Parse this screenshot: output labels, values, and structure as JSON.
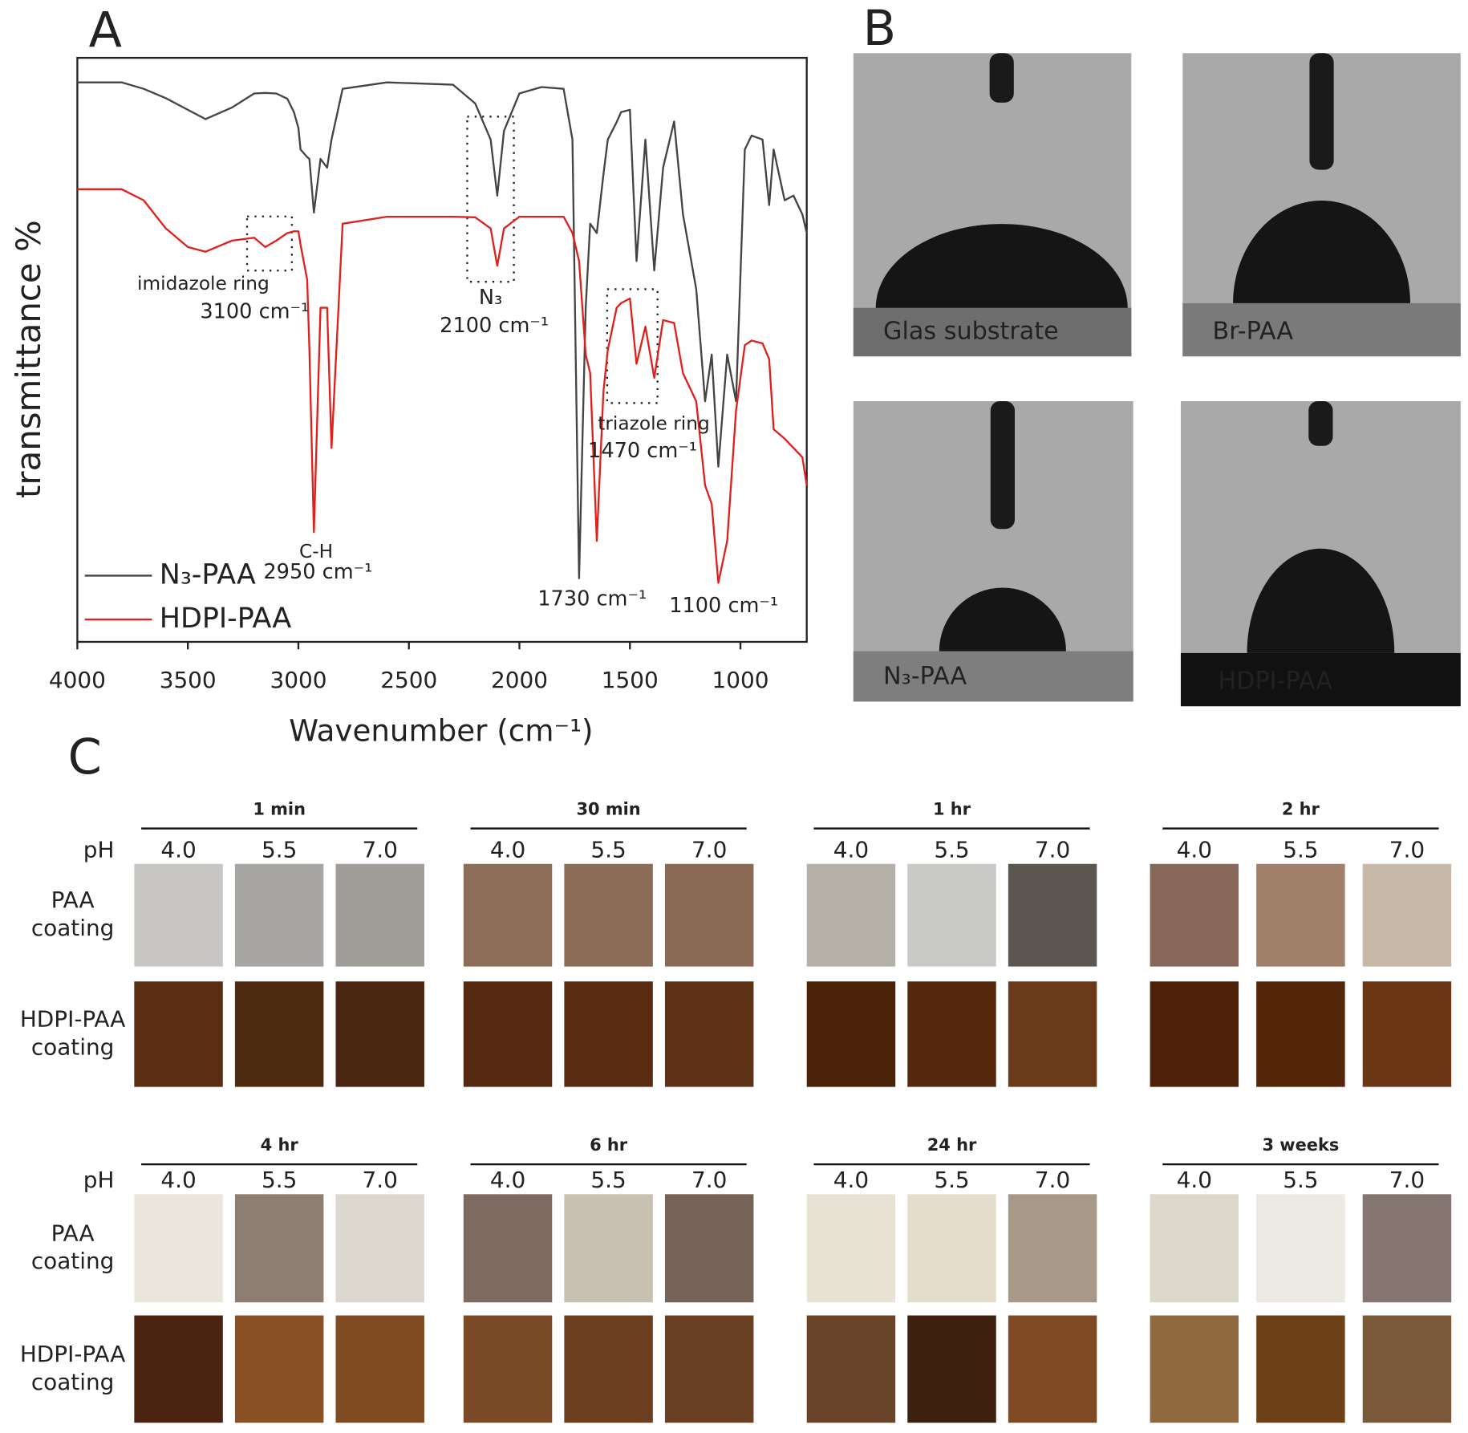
{
  "panel_labels": [
    "A",
    "B",
    "C"
  ],
  "chart_data": {
    "type": "line",
    "x_label": "Wavenumber (cm⁻¹)",
    "y_label": "transmittance %",
    "xlim": [
      4000,
      700
    ],
    "xticks": [
      4000,
      3500,
      3000,
      2500,
      2000,
      1500,
      1000
    ],
    "ylim": [
      0,
      100
    ],
    "x": [
      4000,
      3800,
      3700,
      3600,
      3500,
      3420,
      3300,
      3200,
      3150,
      3100,
      3050,
      3020,
      3000,
      2990,
      2960,
      2950,
      2930,
      2900,
      2870,
      2850,
      2800,
      2600,
      2300,
      2200,
      2130,
      2100,
      2070,
      2000,
      1900,
      1800,
      1760,
      1730,
      1700,
      1680,
      1650,
      1620,
      1600,
      1560,
      1540,
      1500,
      1470,
      1430,
      1390,
      1350,
      1300,
      1260,
      1200,
      1160,
      1130,
      1100,
      1060,
      1020,
      980,
      950,
      900,
      870,
      850,
      800,
      760,
      720,
      700
    ],
    "series": [
      {
        "name": "N₃-PAA",
        "color": "#444444",
        "values": [
          95.8,
          95.8,
          94.7,
          93.1,
          91.1,
          89.5,
          91.5,
          93.9,
          94,
          93.9,
          93,
          90.7,
          88,
          84.3,
          83,
          82.7,
          73.5,
          82.7,
          81.2,
          86,
          94.7,
          95.8,
          95.4,
          92.2,
          86,
          76.4,
          87.5,
          93.9,
          95,
          94.7,
          86,
          10.9,
          57.2,
          71.6,
          70,
          80,
          86,
          89,
          90.7,
          91.1,
          65.2,
          86,
          63.6,
          81.2,
          89.1,
          73.2,
          60.4,
          41.2,
          49.2,
          30,
          49.2,
          41.2,
          84.3,
          86.7,
          86,
          74.8,
          84.3,
          75.6,
          76.4,
          73.2,
          70
        ]
      },
      {
        "name": "HDPI-PAA",
        "color": "#e0201c",
        "values": [
          77.5,
          77.5,
          75.6,
          70.8,
          67.6,
          66.8,
          68.7,
          69.2,
          67.6,
          68.7,
          70,
          70.3,
          70.3,
          68,
          62,
          50,
          18.8,
          57.2,
          57.2,
          33.2,
          71.6,
          72.8,
          72.8,
          72.7,
          70.8,
          64.4,
          70.8,
          72.8,
          72.8,
          72.8,
          70,
          65.2,
          49.2,
          46,
          17.3,
          42.8,
          50,
          57.2,
          58,
          58.8,
          47.6,
          54,
          45.2,
          55.1,
          54.6,
          46,
          41.2,
          26.8,
          23.6,
          10.1,
          17.3,
          39.6,
          50.8,
          51.6,
          51.1,
          48.4,
          36.4,
          34.8,
          33.2,
          31.6,
          26.8
        ]
      }
    ],
    "annotations": [
      "imidazole ring",
      "3100 cm⁻¹",
      "C-H",
      "2950 cm⁻¹",
      "N₃",
      "2100 cm⁻¹",
      "triazole ring",
      "1470 cm⁻¹",
      "1730 cm⁻¹",
      "1100 cm⁻¹"
    ]
  },
  "contact_angle": {
    "images": [
      {
        "label": "Glas substrate"
      },
      {
        "label": "Br-PAA"
      },
      {
        "label": "N₃-PAA"
      },
      {
        "label": "HDPI-PAA"
      }
    ]
  },
  "stability": {
    "ph_label": "pH",
    "ph_values": [
      "4.0",
      "5.5",
      "7.0"
    ],
    "row_labels": [
      [
        "PAA",
        "coating"
      ],
      [
        "HDPI-PAA",
        "coating"
      ]
    ],
    "groups": [
      {
        "time": "1 min",
        "paa_colors": [
          "#c8c6c2",
          "#a8a6a2",
          "#a19d98"
        ],
        "hdpi_colors": [
          "#5a2e12",
          "#4e2a10",
          "#4a2610"
        ]
      },
      {
        "time": "30 min",
        "paa_colors": [
          "#8d6e5a",
          "#8a6c58",
          "#8a6a55"
        ],
        "hdpi_colors": [
          "#552a10",
          "#5a2c12",
          "#5e3216"
        ]
      },
      {
        "time": "1 hr",
        "paa_colors": [
          "#b5b0a8",
          "#c9c9c6",
          "#5b5650"
        ],
        "hdpi_colors": [
          "#4a2208",
          "#55280e",
          "#6a3a1a"
        ]
      },
      {
        "time": "2 hr",
        "paa_colors": [
          "#86675a",
          "#a08068",
          "#c8b8a8"
        ],
        "hdpi_colors": [
          "#4e2208",
          "#55250a",
          "#6a3614"
        ]
      },
      {
        "time": "4  hr",
        "paa_colors": [
          "#eae6dc",
          "#8e7e72",
          "#dcd8d0"
        ],
        "hdpi_colors": [
          "#4a2410",
          "#8a5224",
          "#804a22"
        ]
      },
      {
        "time": "6 hr",
        "paa_colors": [
          "#7d6a60",
          "#c8c0b0",
          "#766358"
        ],
        "hdpi_colors": [
          "#7a4a26",
          "#6a3e1e",
          "#6a4024"
        ]
      },
      {
        "time": "24  hr",
        "paa_colors": [
          "#e8e2d4",
          "#e4ddcc",
          "#a89888"
        ],
        "hdpi_colors": [
          "#6a4428",
          "#3e200e",
          "#7e4a24"
        ]
      },
      {
        "time": "3 weeks",
        "paa_colors": [
          "#ddd8cc",
          "#ece9e2",
          "#857570"
        ],
        "hdpi_colors": [
          "#8e6a3e",
          "#6e4018",
          "#7a5a3a"
        ]
      }
    ]
  }
}
